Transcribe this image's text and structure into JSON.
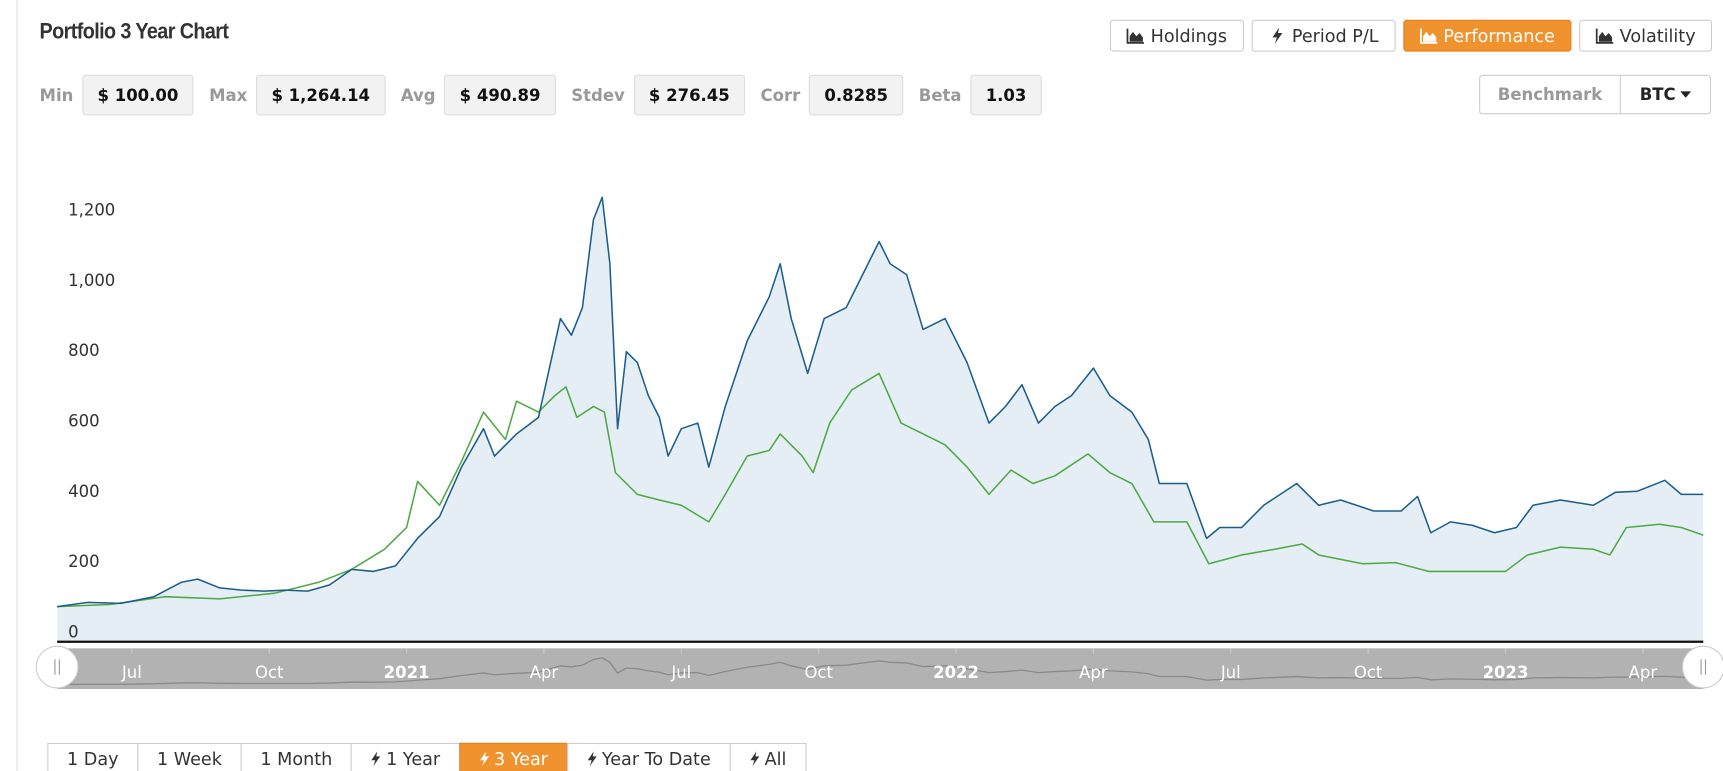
{
  "header": {
    "title": "Portfolio 3 Year Chart"
  },
  "tabs": [
    "Holdings",
    "Period P/L",
    "Performance",
    "Volatility"
  ],
  "stats": [
    {
      "label": "Min",
      "value": "$ 100.00"
    },
    {
      "label": "Max",
      "value": "$ 1,264.14"
    },
    {
      "label": "Avg",
      "value": "$ 490.89"
    },
    {
      "label": "Stdev",
      "value": "$ 276.45"
    },
    {
      "label": "Corr",
      "value": "0.8285"
    },
    {
      "label": "Beta",
      "value": "1.03"
    }
  ],
  "benchmark": {
    "label": "Benchmark",
    "value": "BTC"
  },
  "ranges": [
    "1 Day",
    "1 Week",
    "1 Month",
    "1 Year",
    "3 Year",
    "Year To Date",
    "All"
  ],
  "chart_data": {
    "type": "area-line",
    "xlim": [
      2020.364,
      2023.36
    ],
    "xticks": [
      {
        "value": 2020.5,
        "label": "Jul"
      },
      {
        "value": 2020.75,
        "label": "Oct"
      },
      2021,
      {
        "value": 2021.25,
        "label": "Apr"
      },
      {
        "value": 2021.5,
        "label": "Jul"
      },
      {
        "value": 2021.75,
        "label": "Oct"
      },
      2022,
      {
        "value": 2022.25,
        "label": "Apr"
      },
      {
        "value": 2022.5,
        "label": "Jul"
      },
      {
        "value": 2022.75,
        "label": "Oct"
      },
      2023,
      {
        "value": 2023.25,
        "label": "Apr"
      }
    ],
    "ylim": [
      0,
      1300
    ],
    "yticks": [
      0,
      200,
      400,
      600,
      800,
      {
        "value": 1000,
        "label": "1,000"
      },
      {
        "value": 1200,
        "label": "1,200"
      }
    ],
    "grid": false,
    "series": [
      {
        "color": "#1c5d8a",
        "fill": "#e5eef4",
        "x": [
          2020.364,
          2020.42,
          2020.48,
          2020.54,
          2020.59,
          2020.62,
          2020.66,
          2020.7,
          2020.74,
          2020.78,
          2020.82,
          2020.86,
          2020.9,
          2020.94,
          2020.98,
          2021.02,
          2021.06,
          2021.1,
          2021.14,
          2021.16,
          2021.2,
          2021.24,
          2021.28,
          2021.3,
          2021.32,
          2021.34,
          2021.356,
          2021.37,
          2021.384,
          2021.4,
          2021.42,
          2021.44,
          2021.46,
          2021.476,
          2021.5,
          2021.53,
          2021.55,
          2021.58,
          2021.62,
          2021.66,
          2021.68,
          2021.7,
          2021.73,
          2021.76,
          2021.8,
          2021.83,
          2021.86,
          2021.88,
          2021.91,
          2021.94,
          2021.98,
          2022.02,
          2022.06,
          2022.09,
          2022.12,
          2022.15,
          2022.18,
          2022.21,
          2022.25,
          2022.28,
          2022.32,
          2022.35,
          2022.37,
          2022.42,
          2022.456,
          2022.48,
          2022.52,
          2022.56,
          2022.62,
          2022.66,
          2022.7,
          2022.76,
          2022.81,
          2022.84,
          2022.864,
          2022.9,
          2022.94,
          2022.98,
          2023.02,
          2023.05,
          2023.1,
          2023.16,
          2023.2,
          2023.24,
          2023.29,
          2023.32,
          2023.36
        ],
        "values": [
          100,
          112,
          109,
          128,
          169,
          178,
          153,
          147,
          144,
          147,
          144,
          162,
          206,
          200,
          216,
          294,
          356,
          497,
          606,
          528,
          591,
          638,
          919,
          872,
          950,
          1200,
          1264,
          1075,
          606,
          825,
          794,
          700,
          638,
          528,
          606,
          622,
          497,
          669,
          856,
          981,
          1075,
          919,
          763,
          919,
          950,
          1044,
          1138,
          1075,
          1044,
          888,
          919,
          794,
          622,
          669,
          731,
          622,
          669,
          700,
          778,
          700,
          653,
          575,
          450,
          450,
          294,
          325,
          325,
          388,
          450,
          388,
          403,
          372,
          372,
          413,
          310,
          341,
          331,
          310,
          325,
          388,
          403,
          388,
          425,
          428,
          459,
          419,
          419
        ]
      },
      {
        "color": "#4fa845",
        "x": [
          2020.364,
          2020.46,
          2020.56,
          2020.66,
          2020.76,
          2020.84,
          2020.9,
          2020.96,
          2021.0,
          2021.02,
          2021.06,
          2021.1,
          2021.14,
          2021.18,
          2021.2,
          2021.24,
          2021.27,
          2021.29,
          2021.31,
          2021.34,
          2021.36,
          2021.38,
          2021.42,
          2021.46,
          2021.5,
          2021.55,
          2021.58,
          2021.62,
          2021.66,
          2021.68,
          2021.72,
          2021.74,
          2021.77,
          2021.81,
          2021.86,
          2021.9,
          2021.94,
          2021.98,
          2022.02,
          2022.06,
          2022.1,
          2022.14,
          2022.18,
          2022.24,
          2022.28,
          2022.32,
          2022.36,
          2022.42,
          2022.46,
          2022.52,
          2022.58,
          2022.63,
          2022.66,
          2022.74,
          2022.8,
          2022.86,
          2022.92,
          2023.0,
          2023.04,
          2023.1,
          2023.16,
          2023.19,
          2023.22,
          2023.28,
          2023.32,
          2023.36
        ],
        "values": [
          100,
          106,
          128,
          122,
          138,
          169,
          206,
          263,
          325,
          456,
          388,
          513,
          653,
          575,
          684,
          653,
          700,
          725,
          638,
          669,
          653,
          481,
          419,
          403,
          388,
          341,
          419,
          528,
          544,
          591,
          528,
          481,
          622,
          716,
          763,
          622,
          591,
          560,
          497,
          419,
          488,
          450,
          472,
          534,
          481,
          450,
          341,
          341,
          222,
          247,
          263,
          278,
          247,
          222,
          225,
          200,
          200,
          200,
          247,
          269,
          263,
          247,
          325,
          334,
          325,
          303
        ]
      }
    ]
  }
}
